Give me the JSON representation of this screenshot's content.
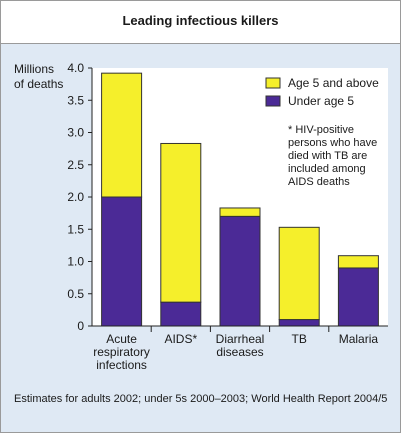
{
  "chart_data": {
    "type": "bar",
    "stacked": true,
    "title": "Leading infectious killers",
    "ylabel": "Millions of deaths",
    "ylabel_lines": [
      "Millions",
      "of deaths"
    ],
    "ylim": [
      0,
      4.0
    ],
    "yticks": [
      "0",
      "0.5",
      "1.0",
      "1.5",
      "2.0",
      "2.5",
      "3.0",
      "3.5",
      "4.0"
    ],
    "ytick_values": [
      0,
      0.5,
      1.0,
      1.5,
      2.0,
      2.5,
      3.0,
      3.5,
      4.0
    ],
    "categories": [
      "Acute respiratory infections",
      "AIDS*",
      "Diarrheal diseases",
      "TB",
      "Malaria"
    ],
    "category_lines": [
      [
        "Acute",
        "respiratory",
        "infections"
      ],
      [
        "AIDS*"
      ],
      [
        "Diarrheal",
        "diseases"
      ],
      [
        "TB"
      ],
      [
        "Malaria"
      ]
    ],
    "series": [
      {
        "name": "Under age 5",
        "color": "#4b2a96",
        "values": [
          2.0,
          0.37,
          1.7,
          0.1,
          0.9
        ]
      },
      {
        "name": "Age 5 and above",
        "color": "#f5ef2b",
        "values": [
          1.92,
          2.46,
          0.13,
          1.43,
          0.19
        ]
      }
    ],
    "legend": [
      "Age 5 and above",
      "Under age 5"
    ],
    "legend_position": "top-right",
    "annotation": "* HIV-positive persons who have died with TB are included among AIDS deaths",
    "source": "Estimates for adults 2002; under 5s 2000–2003; World Health Report 2004/5",
    "grid": false
  }
}
